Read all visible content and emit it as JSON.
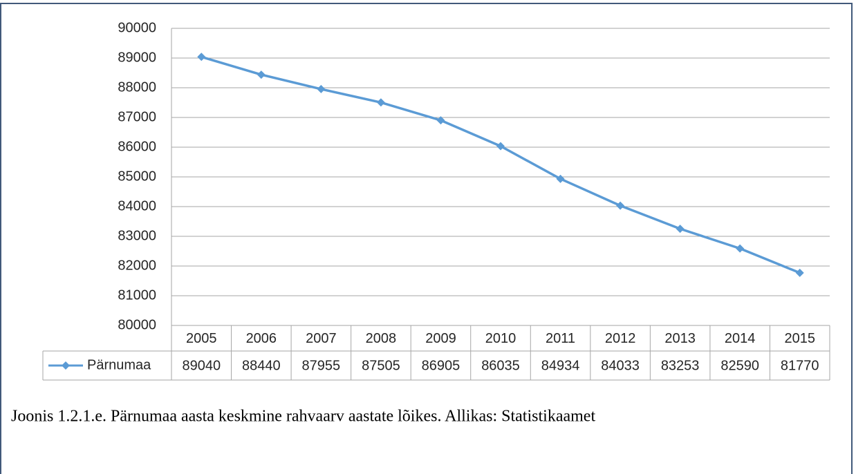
{
  "chart_data": {
    "type": "line",
    "categories": [
      "2005",
      "2006",
      "2007",
      "2008",
      "2009",
      "2010",
      "2011",
      "2012",
      "2013",
      "2014",
      "2015"
    ],
    "series": [
      {
        "name": "Pärnumaa",
        "color": "#5b9bd5",
        "values": [
          89040,
          88440,
          87955,
          87505,
          86905,
          86035,
          84934,
          84033,
          83253,
          82590,
          81770
        ]
      }
    ],
    "ylim": [
      80000,
      90000
    ],
    "yticks": [
      80000,
      81000,
      82000,
      83000,
      84000,
      85000,
      86000,
      87000,
      88000,
      89000,
      90000
    ],
    "grid": true,
    "caption": "Joonis 1.2.1.e. Pärnumaa aasta keskmine rahvaarv aastate lõikes. Allikas: Statistikaamet"
  }
}
